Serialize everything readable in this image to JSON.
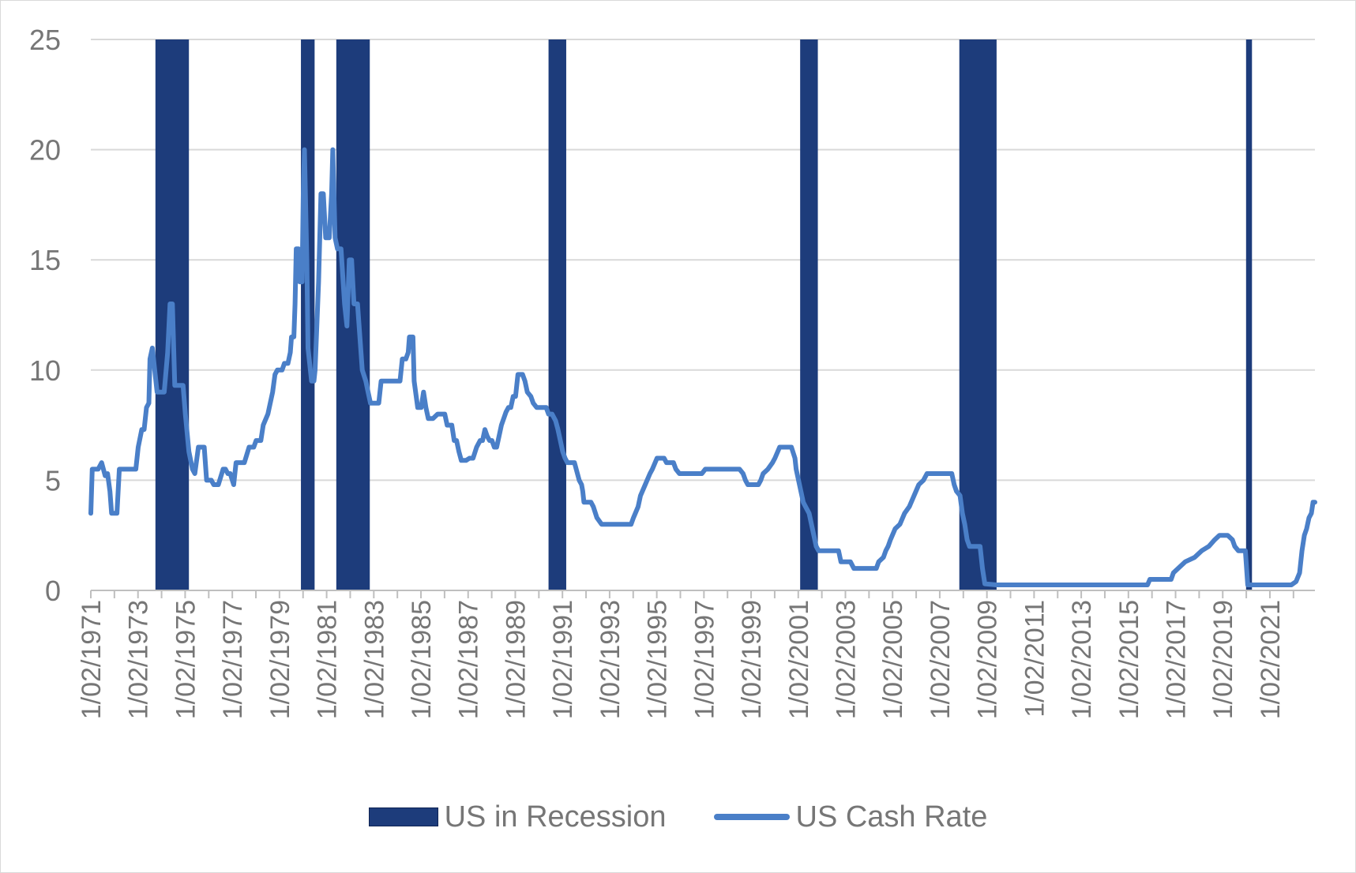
{
  "chart_data": {
    "type": "line",
    "title": "",
    "xlabel": "",
    "ylabel": "",
    "ylim": [
      0,
      25
    ],
    "yticks": [
      0,
      5,
      10,
      15,
      20,
      25
    ],
    "xlim": [
      1971.09,
      2023.0
    ],
    "categories": [
      "1/02/1971",
      "1/02/1973",
      "1/02/1975",
      "1/02/1977",
      "1/02/1979",
      "1/02/1981",
      "1/02/1983",
      "1/02/1985",
      "1/02/1987",
      "1/02/1989",
      "1/02/1991",
      "1/02/1993",
      "1/02/1995",
      "1/02/1997",
      "1/02/1999",
      "1/02/2001",
      "1/02/2003",
      "1/02/2005",
      "1/02/2007",
      "1/02/2009",
      "1/02/2011",
      "1/02/2013",
      "1/02/2015",
      "1/02/2017",
      "1/02/2019",
      "1/02/2021"
    ],
    "grid": true,
    "legend_position": "bottom",
    "colors": {
      "recession": "#1d3c7b",
      "cash_rate": "#4a7fc8",
      "grid": "#d9d9d9",
      "axis": "#bfbfbf",
      "text": "#767676"
    },
    "series": [
      {
        "name": "US in Recession",
        "type": "bar",
        "periods": [
          [
            1973.83,
            1975.25
          ],
          [
            1980.0,
            1980.58
          ],
          [
            1981.5,
            1982.92
          ],
          [
            1990.5,
            1991.25
          ],
          [
            2001.17,
            2001.92
          ],
          [
            2007.92,
            2009.5
          ],
          [
            2020.08,
            2020.33
          ]
        ]
      },
      {
        "name": "US Cash Rate",
        "type": "line",
        "points": [
          [
            1971.09,
            3.5
          ],
          [
            1971.15,
            5.5
          ],
          [
            1971.4,
            5.5
          ],
          [
            1971.55,
            5.8
          ],
          [
            1971.7,
            5.2
          ],
          [
            1971.8,
            5.3
          ],
          [
            1971.9,
            4.5
          ],
          [
            1971.97,
            3.5
          ],
          [
            1972.2,
            3.5
          ],
          [
            1972.3,
            5.5
          ],
          [
            1973.0,
            5.5
          ],
          [
            1973.1,
            6.5
          ],
          [
            1973.25,
            7.3
          ],
          [
            1973.35,
            7.3
          ],
          [
            1973.45,
            8.3
          ],
          [
            1973.55,
            8.5
          ],
          [
            1973.6,
            10.5
          ],
          [
            1973.7,
            11.0
          ],
          [
            1973.8,
            10.0
          ],
          [
            1973.9,
            9.0
          ],
          [
            1974.2,
            9.0
          ],
          [
            1974.35,
            10.8
          ],
          [
            1974.45,
            13.0
          ],
          [
            1974.55,
            13.0
          ],
          [
            1974.65,
            9.3
          ],
          [
            1975.0,
            9.3
          ],
          [
            1975.1,
            8.0
          ],
          [
            1975.25,
            6.3
          ],
          [
            1975.4,
            5.5
          ],
          [
            1975.5,
            5.3
          ],
          [
            1975.65,
            6.5
          ],
          [
            1975.9,
            6.5
          ],
          [
            1976.0,
            5.0
          ],
          [
            1976.2,
            5.0
          ],
          [
            1976.3,
            4.8
          ],
          [
            1976.5,
            4.8
          ],
          [
            1976.7,
            5.5
          ],
          [
            1976.8,
            5.5
          ],
          [
            1976.9,
            5.3
          ],
          [
            1977.0,
            5.3
          ],
          [
            1977.15,
            4.8
          ],
          [
            1977.25,
            5.8
          ],
          [
            1977.6,
            5.8
          ],
          [
            1977.8,
            6.5
          ],
          [
            1978.0,
            6.5
          ],
          [
            1978.1,
            6.8
          ],
          [
            1978.3,
            6.8
          ],
          [
            1978.4,
            7.5
          ],
          [
            1978.6,
            8.0
          ],
          [
            1978.8,
            9.0
          ],
          [
            1978.9,
            9.8
          ],
          [
            1979.0,
            10.0
          ],
          [
            1979.2,
            10.0
          ],
          [
            1979.3,
            10.3
          ],
          [
            1979.45,
            10.3
          ],
          [
            1979.55,
            10.8
          ],
          [
            1979.6,
            11.5
          ],
          [
            1979.7,
            11.5
          ],
          [
            1979.75,
            13.0
          ],
          [
            1979.8,
            15.5
          ],
          [
            1979.9,
            15.5
          ],
          [
            1979.95,
            14.0
          ],
          [
            1980.05,
            14.0
          ],
          [
            1980.1,
            18.0
          ],
          [
            1980.15,
            20.0
          ],
          [
            1980.25,
            15.0
          ],
          [
            1980.3,
            11.0
          ],
          [
            1980.4,
            10.0
          ],
          [
            1980.45,
            9.5
          ],
          [
            1980.55,
            9.5
          ],
          [
            1980.6,
            10.0
          ],
          [
            1980.75,
            14.0
          ],
          [
            1980.85,
            18.0
          ],
          [
            1980.95,
            18.0
          ],
          [
            1981.05,
            16.0
          ],
          [
            1981.2,
            16.0
          ],
          [
            1981.3,
            18.0
          ],
          [
            1981.35,
            20.0
          ],
          [
            1981.45,
            16.0
          ],
          [
            1981.55,
            15.5
          ],
          [
            1981.7,
            15.5
          ],
          [
            1981.85,
            13.0
          ],
          [
            1981.95,
            12.0
          ],
          [
            1982.05,
            15.0
          ],
          [
            1982.15,
            15.0
          ],
          [
            1982.25,
            13.0
          ],
          [
            1982.4,
            13.0
          ],
          [
            1982.5,
            11.5
          ],
          [
            1982.6,
            10.0
          ],
          [
            1982.75,
            9.5
          ],
          [
            1982.85,
            9.0
          ],
          [
            1982.95,
            8.5
          ],
          [
            1983.3,
            8.5
          ],
          [
            1983.4,
            9.5
          ],
          [
            1983.6,
            9.5
          ],
          [
            1983.8,
            9.5
          ],
          [
            1984.0,
            9.5
          ],
          [
            1984.2,
            9.5
          ],
          [
            1984.3,
            10.5
          ],
          [
            1984.45,
            10.5
          ],
          [
            1984.55,
            10.8
          ],
          [
            1984.6,
            11.5
          ],
          [
            1984.75,
            11.5
          ],
          [
            1984.8,
            9.5
          ],
          [
            1984.95,
            8.3
          ],
          [
            1985.1,
            8.3
          ],
          [
            1985.2,
            9.0
          ],
          [
            1985.3,
            8.3
          ],
          [
            1985.4,
            7.8
          ],
          [
            1985.6,
            7.8
          ],
          [
            1985.8,
            8.0
          ],
          [
            1986.1,
            8.0
          ],
          [
            1986.2,
            7.5
          ],
          [
            1986.4,
            7.5
          ],
          [
            1986.5,
            6.8
          ],
          [
            1986.6,
            6.8
          ],
          [
            1986.7,
            6.3
          ],
          [
            1986.8,
            5.9
          ],
          [
            1987.0,
            5.9
          ],
          [
            1987.15,
            6.0
          ],
          [
            1987.3,
            6.0
          ],
          [
            1987.45,
            6.5
          ],
          [
            1987.6,
            6.8
          ],
          [
            1987.7,
            6.8
          ],
          [
            1987.8,
            7.3
          ],
          [
            1987.9,
            7.0
          ],
          [
            1988.0,
            6.8
          ],
          [
            1988.1,
            6.8
          ],
          [
            1988.2,
            6.5
          ],
          [
            1988.3,
            6.5
          ],
          [
            1988.4,
            7.0
          ],
          [
            1988.5,
            7.5
          ],
          [
            1988.7,
            8.1
          ],
          [
            1988.8,
            8.3
          ],
          [
            1988.9,
            8.3
          ],
          [
            1989.0,
            8.8
          ],
          [
            1989.1,
            8.8
          ],
          [
            1989.2,
            9.8
          ],
          [
            1989.4,
            9.8
          ],
          [
            1989.5,
            9.5
          ],
          [
            1989.6,
            9.0
          ],
          [
            1989.75,
            8.8
          ],
          [
            1989.85,
            8.5
          ],
          [
            1990.0,
            8.3
          ],
          [
            1990.4,
            8.3
          ],
          [
            1990.5,
            8.0
          ],
          [
            1990.65,
            8.0
          ],
          [
            1990.8,
            7.7
          ],
          [
            1990.9,
            7.3
          ],
          [
            1991.0,
            6.8
          ],
          [
            1991.1,
            6.3
          ],
          [
            1991.2,
            6.0
          ],
          [
            1991.3,
            5.8
          ],
          [
            1991.6,
            5.8
          ],
          [
            1991.8,
            5.0
          ],
          [
            1991.9,
            4.8
          ],
          [
            1991.95,
            4.5
          ],
          [
            1992.0,
            4.0
          ],
          [
            1992.3,
            4.0
          ],
          [
            1992.4,
            3.8
          ],
          [
            1992.55,
            3.3
          ],
          [
            1992.75,
            3.0
          ],
          [
            1993.0,
            3.0
          ],
          [
            1993.5,
            3.0
          ],
          [
            1994.0,
            3.0
          ],
          [
            1994.1,
            3.3
          ],
          [
            1994.3,
            3.8
          ],
          [
            1994.4,
            4.3
          ],
          [
            1994.6,
            4.8
          ],
          [
            1994.8,
            5.3
          ],
          [
            1994.9,
            5.5
          ],
          [
            1995.1,
            6.0
          ],
          [
            1995.4,
            6.0
          ],
          [
            1995.5,
            5.8
          ],
          [
            1995.8,
            5.8
          ],
          [
            1995.9,
            5.5
          ],
          [
            1996.05,
            5.3
          ],
          [
            1996.5,
            5.3
          ],
          [
            1997.0,
            5.3
          ],
          [
            1997.15,
            5.5
          ],
          [
            1997.5,
            5.5
          ],
          [
            1998.0,
            5.5
          ],
          [
            1998.6,
            5.5
          ],
          [
            1998.75,
            5.3
          ],
          [
            1998.85,
            5.0
          ],
          [
            1998.95,
            4.8
          ],
          [
            1999.4,
            4.8
          ],
          [
            1999.5,
            5.0
          ],
          [
            1999.6,
            5.3
          ],
          [
            1999.8,
            5.5
          ],
          [
            2000.0,
            5.8
          ],
          [
            2000.1,
            6.0
          ],
          [
            2000.3,
            6.5
          ],
          [
            2000.8,
            6.5
          ],
          [
            2000.95,
            6.0
          ],
          [
            2001.0,
            5.5
          ],
          [
            2001.1,
            5.0
          ],
          [
            2001.2,
            4.5
          ],
          [
            2001.3,
            4.0
          ],
          [
            2001.4,
            3.8
          ],
          [
            2001.55,
            3.5
          ],
          [
            2001.65,
            3.0
          ],
          [
            2001.75,
            2.5
          ],
          [
            2001.85,
            2.0
          ],
          [
            2001.95,
            1.8
          ],
          [
            2002.5,
            1.8
          ],
          [
            2002.8,
            1.8
          ],
          [
            2002.9,
            1.3
          ],
          [
            2003.3,
            1.3
          ],
          [
            2003.45,
            1.0
          ],
          [
            2004.0,
            1.0
          ],
          [
            2004.4,
            1.0
          ],
          [
            2004.5,
            1.3
          ],
          [
            2004.7,
            1.5
          ],
          [
            2004.8,
            1.8
          ],
          [
            2004.9,
            2.0
          ],
          [
            2005.0,
            2.3
          ],
          [
            2005.2,
            2.8
          ],
          [
            2005.4,
            3.0
          ],
          [
            2005.6,
            3.5
          ],
          [
            2005.8,
            3.8
          ],
          [
            2006.0,
            4.3
          ],
          [
            2006.2,
            4.8
          ],
          [
            2006.4,
            5.0
          ],
          [
            2006.55,
            5.3
          ],
          [
            2007.0,
            5.3
          ],
          [
            2007.6,
            5.3
          ],
          [
            2007.7,
            4.8
          ],
          [
            2007.8,
            4.5
          ],
          [
            2007.95,
            4.3
          ],
          [
            2008.05,
            3.5
          ],
          [
            2008.15,
            3.0
          ],
          [
            2008.25,
            2.3
          ],
          [
            2008.35,
            2.0
          ],
          [
            2008.8,
            2.0
          ],
          [
            2008.9,
            1.0
          ],
          [
            2009.0,
            0.3
          ],
          [
            2009.5,
            0.25
          ],
          [
            2011.0,
            0.25
          ],
          [
            2013.0,
            0.25
          ],
          [
            2015.0,
            0.25
          ],
          [
            2015.9,
            0.25
          ],
          [
            2016.0,
            0.5
          ],
          [
            2016.9,
            0.5
          ],
          [
            2017.0,
            0.8
          ],
          [
            2017.2,
            1.0
          ],
          [
            2017.5,
            1.3
          ],
          [
            2017.9,
            1.5
          ],
          [
            2018.2,
            1.8
          ],
          [
            2018.5,
            2.0
          ],
          [
            2018.75,
            2.3
          ],
          [
            2018.95,
            2.5
          ],
          [
            2019.3,
            2.5
          ],
          [
            2019.5,
            2.3
          ],
          [
            2019.6,
            2.0
          ],
          [
            2019.75,
            1.8
          ],
          [
            2020.05,
            1.8
          ],
          [
            2020.15,
            0.25
          ],
          [
            2021.0,
            0.25
          ],
          [
            2022.0,
            0.25
          ],
          [
            2022.2,
            0.4
          ],
          [
            2022.35,
            0.8
          ],
          [
            2022.45,
            1.8
          ],
          [
            2022.55,
            2.5
          ],
          [
            2022.65,
            2.8
          ],
          [
            2022.75,
            3.3
          ],
          [
            2022.85,
            3.5
          ],
          [
            2022.92,
            4.0
          ],
          [
            2023.0,
            4.0
          ]
        ]
      }
    ]
  }
}
